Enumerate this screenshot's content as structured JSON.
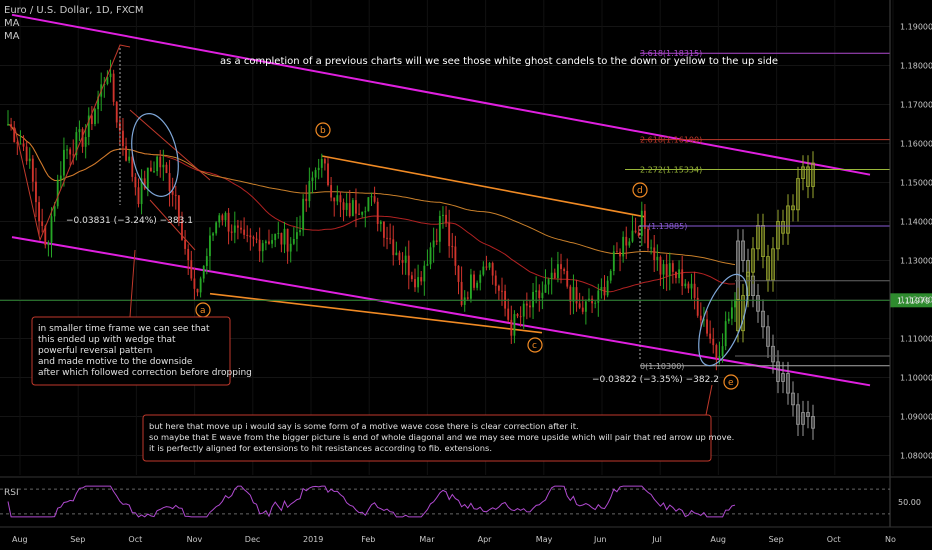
{
  "header": {
    "symbol": "Euro / U.S. Dollar, 1D, FXCM",
    "ma1": "MA",
    "ma2": "MA"
  },
  "headline": "as a completion of a previous charts will we see those white ghost candels to the down or yellow to the up side",
  "price_axis": {
    "ticks": [
      "1.19000",
      "1.18000",
      "1.17000",
      "1.16000",
      "1.15000",
      "1.14000",
      "1.13000",
      "1.12000",
      "1.11000",
      "1.10000",
      "1.09000",
      "1.08000"
    ],
    "tick_values": [
      1.19,
      1.18,
      1.17,
      1.16,
      1.15,
      1.14,
      1.13,
      1.12,
      1.11,
      1.1,
      1.09,
      1.08
    ],
    "current_price": "1.11979",
    "current_value": 1.11979,
    "range": [
      1.075,
      1.195
    ]
  },
  "time_axis": {
    "labels": [
      "Aug",
      "Sep",
      "Oct",
      "Nov",
      "Dec",
      "2019",
      "Feb",
      "Mar",
      "Apr",
      "May",
      "Jun",
      "Jul",
      "Aug",
      "Sep",
      "Oct",
      "No"
    ]
  },
  "fib_levels": [
    {
      "label": "3.618(1.18315)",
      "value": 1.18315,
      "color": "#b04ad0"
    },
    {
      "label": "2.618(1.16100)",
      "value": 1.161,
      "color": "#c0392b"
    },
    {
      "label": "2.272(1.15334)",
      "value": 1.15334,
      "color": "#9ab83a"
    },
    {
      "label": "(1.13885)",
      "value": 1.13885,
      "color": "#8a5bd6"
    },
    {
      "label": "0(1.10300)",
      "value": 1.103,
      "color": "#aaaaaa"
    }
  ],
  "wave_labels": [
    "a",
    "b",
    "c",
    "d",
    "e"
  ],
  "measurements": [
    {
      "text": "−0.03831 (−3.24%) −383.1"
    },
    {
      "text": "−0.03822 (−3.35%) −382.2"
    }
  ],
  "note1": {
    "lines": [
      "in smaller time frame we can see that",
      "this ended up with wedge that",
      "powerful reversal pattern",
      "and made motive to the downside",
      "after which followed correction before dropping"
    ]
  },
  "note2": {
    "lines": [
      "but here that move up i would say is some form of a motive wave cose there is clear correction after it.",
      "so maybe that E wave from the bigger picture is end of whole diagonal and we may see more upside which will pair that red arrow up move.",
      "it is perfectly aligned for extensions to hit resistances according to fib. extensions."
    ]
  },
  "rsi": {
    "label": "RSI",
    "tick": "50.00",
    "last_value": 52
  },
  "chart_data": {
    "type": "candlestick",
    "title": "Euro / U.S. Dollar, 1D, FXCM",
    "ylim": [
      1.075,
      1.195
    ],
    "xlabel": "",
    "ylabel": "",
    "waypoints": [
      {
        "i": 0,
        "p": 1.165
      },
      {
        "i": 6,
        "p": 1.158
      },
      {
        "i": 12,
        "p": 1.133
      },
      {
        "i": 18,
        "p": 1.158
      },
      {
        "i": 25,
        "p": 1.162
      },
      {
        "i": 32,
        "p": 1.179
      },
      {
        "i": 36,
        "p": 1.163
      },
      {
        "i": 42,
        "p": 1.147
      },
      {
        "i": 48,
        "p": 1.156
      },
      {
        "i": 54,
        "p": 1.147
      },
      {
        "i": 60,
        "p": 1.12
      },
      {
        "i": 68,
        "p": 1.143
      },
      {
        "i": 76,
        "p": 1.134
      },
      {
        "i": 84,
        "p": 1.136
      },
      {
        "i": 92,
        "p": 1.135
      },
      {
        "i": 100,
        "p": 1.156
      },
      {
        "i": 108,
        "p": 1.142
      },
      {
        "i": 116,
        "p": 1.146
      },
      {
        "i": 124,
        "p": 1.134
      },
      {
        "i": 132,
        "p": 1.125
      },
      {
        "i": 140,
        "p": 1.142
      },
      {
        "i": 146,
        "p": 1.12
      },
      {
        "i": 154,
        "p": 1.131
      },
      {
        "i": 162,
        "p": 1.113
      },
      {
        "i": 170,
        "p": 1.12
      },
      {
        "i": 178,
        "p": 1.127
      },
      {
        "i": 184,
        "p": 1.117
      },
      {
        "i": 190,
        "p": 1.12
      },
      {
        "i": 198,
        "p": 1.135
      },
      {
        "i": 204,
        "p": 1.14
      },
      {
        "i": 210,
        "p": 1.128
      },
      {
        "i": 218,
        "p": 1.125
      },
      {
        "i": 224,
        "p": 1.115
      },
      {
        "i": 228,
        "p": 1.106
      },
      {
        "i": 234,
        "p": 1.12
      }
    ],
    "bull_ghost": [
      1.112,
      1.121,
      1.127,
      1.133,
      1.139,
      1.131,
      1.125,
      1.133,
      1.14,
      1.137,
      1.144,
      1.143,
      1.151,
      1.154,
      1.149,
      1.155
    ],
    "bear_ghost": [
      1.135,
      1.13,
      1.126,
      1.121,
      1.117,
      1.113,
      1.108,
      1.104,
      1.099,
      1.101,
      1.096,
      1.093,
      1.088,
      1.091,
      1.09,
      1.087
    ],
    "channel_upper": [
      [
        1.193,
        0
      ],
      [
        1.152,
        280
      ]
    ],
    "channel_lower": [
      [
        1.136,
        0
      ],
      [
        1.098,
        280
      ]
    ]
  }
}
